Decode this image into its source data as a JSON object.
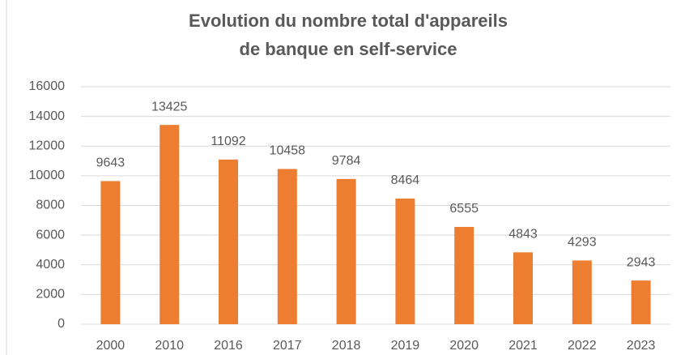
{
  "chart_data": {
    "type": "bar",
    "title": "Evolution du nombre total d'appareils de banque en self-service",
    "categories": [
      "2000",
      "2010",
      "2016",
      "2017",
      "2018",
      "2019",
      "2020",
      "2021",
      "2022",
      "2023"
    ],
    "values": [
      9643,
      13425,
      11092,
      10458,
      9784,
      8464,
      6555,
      4843,
      4293,
      2943
    ],
    "color": "#ed7d31",
    "ylim": [
      0,
      16000
    ],
    "yticks": [
      0,
      2000,
      4000,
      6000,
      8000,
      10000,
      12000,
      14000,
      16000
    ],
    "grid": true,
    "data_labels": true
  }
}
